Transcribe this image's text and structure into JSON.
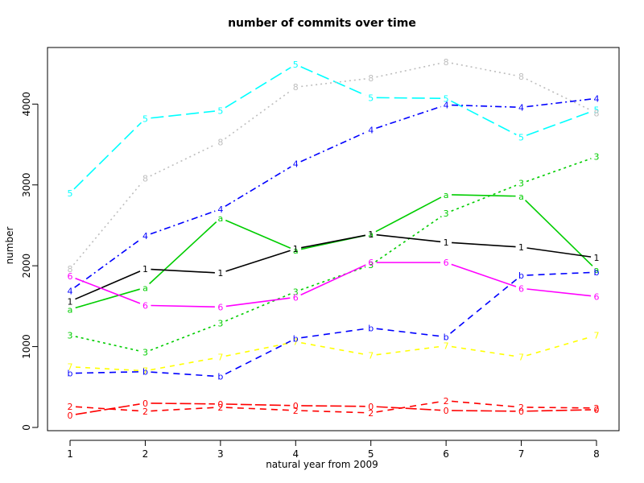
{
  "chart_data": {
    "type": "line",
    "title": "number of commits over time",
    "xlabel": "natural year from 2009",
    "ylabel": "number",
    "x": [
      1,
      2,
      3,
      4,
      5,
      6,
      7,
      8
    ],
    "xlim": [
      0.7,
      8.3
    ],
    "ylim": [
      -40,
      4700
    ],
    "x_ticks": [
      1,
      2,
      3,
      4,
      5,
      6,
      7,
      8
    ],
    "y_ticks": [
      0,
      1000,
      2000,
      3000,
      4000
    ],
    "grid": false,
    "legend": "none",
    "series": [
      {
        "marker": "5",
        "color": "#00ffff",
        "dash": "16,6",
        "values": [
          2900,
          3820,
          3920,
          4490,
          4080,
          4070,
          3590,
          3930
        ]
      },
      {
        "marker": "8",
        "color": "#bebebe",
        "dash": "2,4",
        "values": [
          1960,
          3080,
          3530,
          4210,
          4320,
          4520,
          4340,
          3890
        ]
      },
      {
        "marker": "4",
        "color": "#0000ff",
        "dash": "8,4,2,4",
        "values": [
          1690,
          2370,
          2700,
          3260,
          3680,
          3990,
          3960,
          4070
        ]
      },
      {
        "marker": "3",
        "color": "#00cd00",
        "dash": "3,4",
        "values": [
          1140,
          930,
          1290,
          1680,
          2010,
          2650,
          3020,
          3350
        ]
      },
      {
        "marker": "a",
        "color": "#00cd00",
        "dash": "",
        "values": [
          1460,
          1730,
          2590,
          2190,
          2390,
          2880,
          2860,
          1950
        ]
      },
      {
        "marker": "1",
        "color": "#000000",
        "dash": "",
        "values": [
          1560,
          1960,
          1910,
          2210,
          2390,
          2290,
          2230,
          2100
        ]
      },
      {
        "marker": "6",
        "color": "#ff00ff",
        "dash": "",
        "values": [
          1870,
          1510,
          1490,
          1610,
          2040,
          2040,
          1720,
          1620
        ]
      },
      {
        "marker": "7",
        "color": "#ffff00",
        "dash": "6,6",
        "values": [
          750,
          700,
          870,
          1060,
          890,
          1010,
          870,
          1140
        ]
      },
      {
        "marker": "b",
        "color": "#0000ff",
        "dash": "8,6",
        "values": [
          670,
          690,
          630,
          1100,
          1230,
          1120,
          1880,
          1920
        ]
      },
      {
        "marker": "2",
        "color": "#ff0000",
        "dash": "8,6",
        "values": [
          260,
          200,
          250,
          210,
          180,
          330,
          250,
          240
        ]
      },
      {
        "marker": "0",
        "color": "#ff0000",
        "dash": "14,4",
        "values": [
          150,
          300,
          290,
          270,
          260,
          210,
          200,
          220
        ]
      }
    ]
  }
}
